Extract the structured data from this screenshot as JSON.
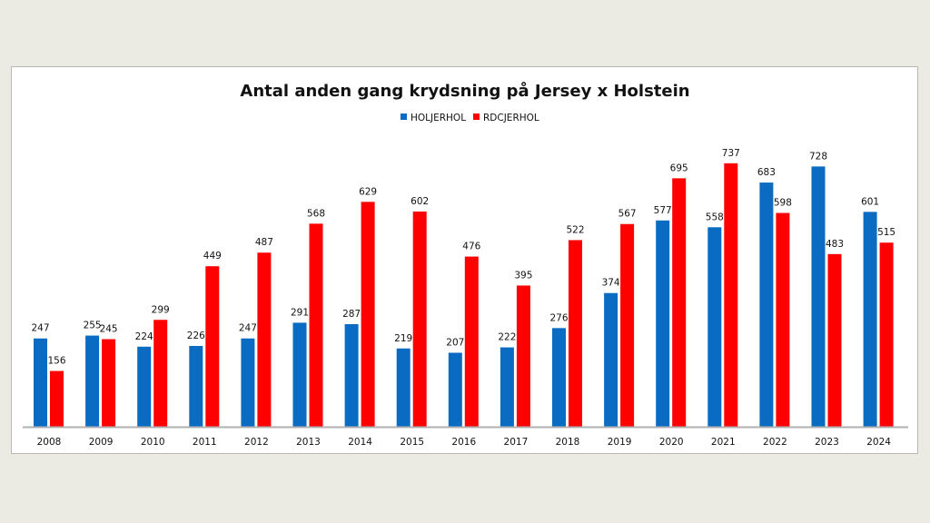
{
  "chart_data": {
    "type": "bar",
    "title": "Antal anden gang krydsning på Jersey x Holstein",
    "xlabel": "",
    "ylabel": "",
    "ylim": [
      0,
      800
    ],
    "grid": false,
    "legend_position": "top",
    "categories": [
      "2008",
      "2009",
      "2010",
      "2011",
      "2012",
      "2013",
      "2014",
      "2015",
      "2016",
      "2017",
      "2018",
      "2019",
      "2020",
      "2021",
      "2022",
      "2023",
      "2024"
    ],
    "series": [
      {
        "name": "HOLJERHOL",
        "color": "#0a6bc2",
        "values": [
          247,
          255,
          224,
          226,
          247,
          291,
          287,
          219,
          207,
          222,
          276,
          374,
          577,
          558,
          683,
          728,
          601
        ]
      },
      {
        "name": "RDCJERHOL",
        "color": "#ff0000",
        "values": [
          156,
          245,
          299,
          449,
          487,
          568,
          629,
          602,
          476,
          395,
          522,
          567,
          695,
          737,
          598,
          483,
          515
        ]
      }
    ],
    "data_labels": true
  }
}
